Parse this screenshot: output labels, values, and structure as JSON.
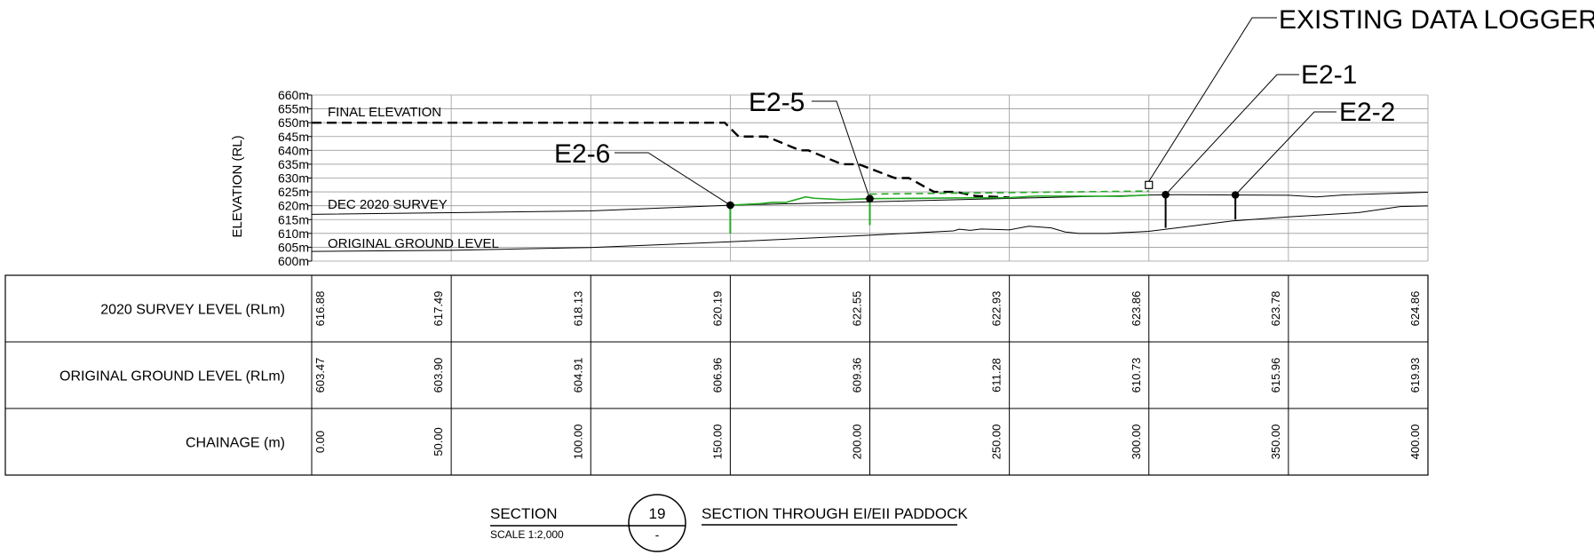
{
  "chart_data": {
    "type": "line",
    "ylabel": "ELEVATION (RL)",
    "y_tick_labels": [
      "660m",
      "655m",
      "650m",
      "645m",
      "640m",
      "635m",
      "630m",
      "625m",
      "620m",
      "615m",
      "610m",
      "605m",
      "600m"
    ],
    "ylim": [
      600,
      660
    ],
    "xlim": [
      0,
      400
    ],
    "grid": true,
    "x_ticks": [
      0,
      50,
      100,
      150,
      200,
      250,
      300,
      350,
      400
    ],
    "series": [
      {
        "name": "FINAL ELEVATION",
        "style": "dashed",
        "color": "#000000",
        "x": [
          0,
          148,
          153,
          163,
          175,
          178,
          190,
          196,
          209,
          214,
          223,
          231,
          238,
          250
        ],
        "y": [
          650,
          650,
          645,
          645,
          640,
          640,
          635,
          635,
          630,
          630,
          625,
          625,
          623.5,
          623
        ]
      },
      {
        "name": "DEC 2020 SURVEY",
        "style": "solid",
        "color": "#000000",
        "x": [
          0,
          50,
          100,
          150,
          300,
          310,
          350,
          360,
          370,
          400
        ],
        "y": [
          616.88,
          617.49,
          618.13,
          620.19,
          623.86,
          624,
          623.78,
          623.2,
          623.9,
          624.86
        ]
      },
      {
        "name": "ORIGINAL GROUND LEVEL",
        "style": "solid",
        "color": "#000000",
        "x": [
          0,
          50,
          100,
          150,
          200,
          230,
          232,
          236,
          240,
          250,
          257,
          265,
          270,
          275,
          285,
          300,
          330,
          350,
          375,
          390,
          400
        ],
        "y": [
          603.47,
          603.9,
          604.91,
          606.96,
          609.36,
          610.9,
          611.5,
          611.1,
          611.6,
          611.28,
          612.6,
          612.0,
          610.5,
          610.0,
          610.0,
          610.73,
          614.5,
          615.96,
          617.5,
          619.7,
          619.93
        ]
      },
      {
        "name": "",
        "style": "solid",
        "color": "#22aa22",
        "x": [
          150,
          160,
          165,
          170,
          177,
          180,
          190,
          200,
          230,
          250,
          260,
          290,
          300
        ],
        "y": [
          620.19,
          620.7,
          621.2,
          621.2,
          623.2,
          622.7,
          622.2,
          622.55,
          622.8,
          622.93,
          623.5,
          623.4,
          623.86
        ]
      },
      {
        "name": "",
        "style": "dashed",
        "color": "#22aa22",
        "x": [
          200,
          300
        ],
        "y": [
          624.2,
          625.3
        ]
      }
    ]
  },
  "markers": [
    {
      "label": "E2-6",
      "x": 150,
      "y": 620.19,
      "stem_to": 610,
      "stem_color": "#22aa22"
    },
    {
      "label": "E2-5",
      "x": 200,
      "y": 622.55,
      "stem_to": 613,
      "stem_color": "#22aa22"
    },
    {
      "label": "E2-1",
      "x": 306,
      "y": 624.0,
      "stem_to": 612,
      "stem_color": "#000000"
    },
    {
      "label": "E2-2",
      "x": 331,
      "y": 623.9,
      "stem_to": 615,
      "stem_color": "#000000"
    },
    {
      "label": "EXISTING DATA LOGGER",
      "x": 300,
      "y": 627.5,
      "stem_to": null,
      "stem_color": "#000000"
    }
  ],
  "table": {
    "rows": [
      {
        "label": "2020 SURVEY LEVEL (RLm)",
        "values": [
          "616.88",
          "617.49",
          "618.13",
          "620.19",
          "622.55",
          "622.93",
          "623.86",
          "623.78",
          "624.86"
        ]
      },
      {
        "label": "ORIGINAL GROUND LEVEL (RLm)",
        "values": [
          "603.47",
          "603.90",
          "604.91",
          "606.96",
          "609.36",
          "611.28",
          "610.73",
          "615.96",
          "619.93"
        ]
      },
      {
        "label": "CHAINAGE (m)",
        "values": [
          "0.00",
          "50.00",
          "100.00",
          "150.00",
          "200.00",
          "250.00",
          "300.00",
          "350.00",
          "400.00"
        ]
      }
    ]
  },
  "title_block": {
    "section_label": "SECTION",
    "scale": "SCALE 1:2,000",
    "number": "19",
    "sheet": "-",
    "title": "SECTION THROUGH EI/EII PADDOCK"
  }
}
